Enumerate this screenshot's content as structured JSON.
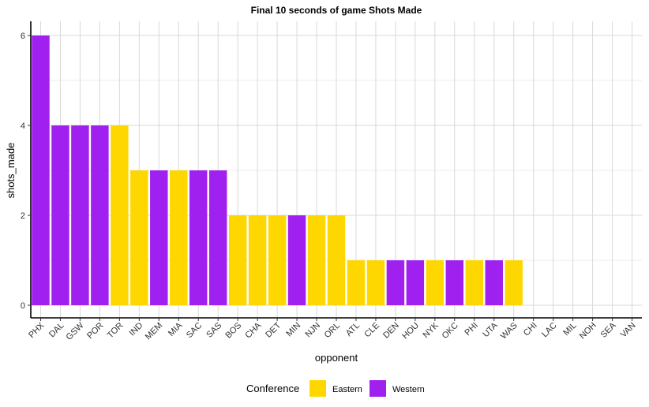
{
  "chart_data": {
    "type": "bar",
    "title": "Final 10 seconds of game Shots Made",
    "xlabel": "opponent",
    "ylabel": "shots_made",
    "ylim": [
      0,
      6
    ],
    "yticks": [
      0,
      2,
      4,
      6
    ],
    "grid": true,
    "legend": {
      "title": "Conference",
      "placement": "bottom",
      "entries": [
        {
          "name": "Eastern",
          "color": "#FFD700"
        },
        {
          "name": "Western",
          "color": "#A020F0"
        }
      ]
    },
    "categories": [
      "PHX",
      "DAL",
      "GSW",
      "POR",
      "TOR",
      "IND",
      "MEM",
      "MIA",
      "SAC",
      "SAS",
      "BOS",
      "CHA",
      "DET",
      "MIN",
      "NJN",
      "ORL",
      "ATL",
      "CLE",
      "DEN",
      "HOU",
      "NYK",
      "OKC",
      "PHI",
      "UTA",
      "WAS",
      "CHI",
      "LAC",
      "MIL",
      "NOH",
      "SEA",
      "VAN"
    ],
    "values": [
      6,
      4,
      4,
      4,
      4,
      3,
      3,
      3,
      3,
      3,
      2,
      2,
      2,
      2,
      2,
      2,
      1,
      1,
      1,
      1,
      1,
      1,
      1,
      1,
      1,
      0,
      0,
      0,
      0,
      0,
      0
    ],
    "conference": [
      "Western",
      "Western",
      "Western",
      "Western",
      "Eastern",
      "Eastern",
      "Western",
      "Eastern",
      "Western",
      "Western",
      "Eastern",
      "Eastern",
      "Eastern",
      "Western",
      "Eastern",
      "Eastern",
      "Eastern",
      "Eastern",
      "Western",
      "Western",
      "Eastern",
      "Western",
      "Eastern",
      "Western",
      "Eastern",
      "",
      "",
      "",
      "",
      "",
      ""
    ]
  }
}
